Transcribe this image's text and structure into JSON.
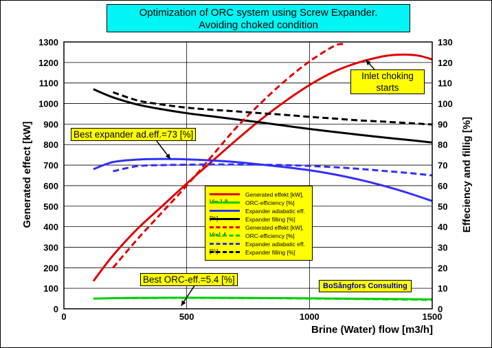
{
  "chart_data": {
    "type": "line",
    "title": "Optimization of ORC system using Screw Expander.",
    "subtitle": "Avoiding choked condition",
    "xlabel": "Brine (Water) flow [m3/h]",
    "ylabel": "Generated effect [kW]",
    "y2label": "Effeciency and fillig [%]",
    "xlim": [
      0,
      1500
    ],
    "ylim": [
      0,
      1300
    ],
    "y2lim": [
      0,
      130
    ],
    "xticks": [
      0,
      500,
      1000,
      1500
    ],
    "yticks": [
      0,
      100,
      200,
      300,
      400,
      500,
      600,
      700,
      800,
      900,
      1000,
      1100,
      1200,
      1300
    ],
    "y2ticks": [
      0,
      10,
      20,
      30,
      40,
      50,
      60,
      70,
      80,
      90,
      100,
      110,
      120,
      130
    ],
    "grid": true,
    "legend_position": "center",
    "series": [
      {
        "name": "Generated effekt [kW], Vi= 1.8",
        "axis": "left",
        "color": "#e00000",
        "dash": false,
        "x": [
          120,
          200,
          300,
          400,
          500,
          600,
          700,
          800,
          900,
          1000,
          1100,
          1200,
          1300,
          1350,
          1400,
          1450,
          1500
        ],
        "y": [
          135,
          260,
          390,
          500,
          610,
          715,
          820,
          920,
          1010,
          1090,
          1155,
          1200,
          1230,
          1237,
          1238,
          1232,
          1215
        ]
      },
      {
        "name": "ORC-efficiency [%]",
        "axis": "right",
        "color": "#00d000",
        "dash": false,
        "x": [
          120,
          300,
          500,
          700,
          900,
          1100,
          1300,
          1500
        ],
        "y": [
          5.0,
          5.3,
          5.4,
          5.3,
          5.2,
          5.0,
          4.8,
          4.6
        ]
      },
      {
        "name": "Expander adiabatic eff. [%]",
        "axis": "right",
        "color": "#3030ff",
        "dash": false,
        "x": [
          120,
          200,
          300,
          400,
          500,
          600,
          700,
          800,
          900,
          1000,
          1100,
          1200,
          1300,
          1400,
          1500
        ],
        "y": [
          68,
          71.5,
          72.7,
          73,
          72.8,
          72.3,
          71.5,
          70.3,
          69,
          67.5,
          65.5,
          63,
          60,
          56.5,
          52.5
        ]
      },
      {
        "name": "Expander filling [%]",
        "axis": "right",
        "color": "#000000",
        "dash": false,
        "x": [
          120,
          200,
          300,
          400,
          500,
          600,
          700,
          800,
          900,
          1000,
          1100,
          1200,
          1300,
          1400,
          1500
        ],
        "y": [
          107,
          103,
          99.5,
          97.2,
          95.3,
          93.8,
          92.3,
          90.8,
          89.2,
          87.6,
          86.2,
          84.8,
          83.5,
          82.3,
          81
        ]
      },
      {
        "name": "Generated effekt [kW], Vi=1.4",
        "axis": "left",
        "color": "#e00000",
        "dash": true,
        "x": [
          200,
          300,
          400,
          500,
          600,
          700,
          800,
          900,
          1000,
          1100,
          1140
        ],
        "y": [
          200,
          340,
          470,
          600,
          740,
          880,
          1000,
          1110,
          1205,
          1280,
          1290
        ]
      },
      {
        "name": "ORC-efficiency [%]",
        "axis": "right",
        "color": "#00d000",
        "dash": true,
        "x": [
          200,
          400,
          600,
          800,
          1000,
          1200,
          1400,
          1500
        ],
        "y": [
          5.2,
          5.3,
          5.3,
          5.2,
          5.0,
          4.8,
          4.5,
          4.3
        ]
      },
      {
        "name": "Expander adiabatic eff. [%]",
        "axis": "right",
        "color": "#3030ff",
        "dash": true,
        "x": [
          200,
          300,
          400,
          500,
          600,
          700,
          800,
          900,
          1000,
          1100,
          1200,
          1300,
          1400,
          1500
        ],
        "y": [
          67,
          69.5,
          70,
          70.2,
          70.3,
          70.3,
          70.2,
          70,
          69.6,
          69,
          68.2,
          67.2,
          66.2,
          65
        ]
      },
      {
        "name": "Expander filling [%]",
        "axis": "right",
        "color": "#000000",
        "dash": true,
        "x": [
          200,
          300,
          400,
          500,
          600,
          700,
          800,
          900,
          1000,
          1100,
          1200,
          1300,
          1400,
          1500
        ],
        "y": [
          105.5,
          101.5,
          99.5,
          98,
          97,
          96.2,
          95.3,
          94.5,
          93.5,
          92.7,
          91.8,
          91.2,
          90.5,
          89.8
        ]
      }
    ],
    "annotations": [
      {
        "text": "Inlet choking starts",
        "line1": "Inlet choking",
        "line2": "starts",
        "x": 1370,
        "y": 1225
      },
      {
        "text": "Best expander ad.eff.=73 [%]",
        "x": 400,
        "y": 730
      },
      {
        "text": "Best ORC-eff.=5.4  [%]",
        "x": 500,
        "y": 55
      }
    ],
    "credit": "BoSångfors Consulting"
  }
}
